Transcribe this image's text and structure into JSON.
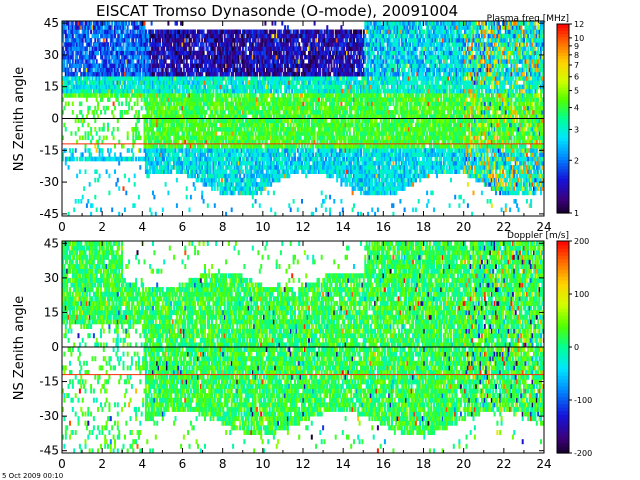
{
  "figure": {
    "title": "EISCAT Tromso Dynasonde (O-mode),  20091004",
    "timestamp": "5 Oct 2009 00:10"
  },
  "chart_data": [
    {
      "type": "heatmap",
      "panel": "top",
      "title": "EISCAT Tromso Dynasonde (O-mode),  20091004",
      "xlabel": "",
      "ylabel": "NS Zenith angle",
      "xlim": [
        0,
        24
      ],
      "ylim": [
        -46,
        46
      ],
      "x_ticks": [
        0,
        2,
        4,
        6,
        8,
        10,
        12,
        14,
        16,
        18,
        20,
        22,
        24
      ],
      "y_ticks": [
        -45,
        -30,
        -15,
        0,
        15,
        30,
        45
      ],
      "reference_lines": [
        {
          "y": 0,
          "color": "#000000"
        },
        {
          "y": -12,
          "color": "#ff2a00"
        }
      ],
      "colorbar": {
        "title": "Plasma freq [MHz]",
        "scale": "log",
        "range": [
          1,
          12
        ],
        "tick_labels": [
          "12",
          "10",
          "9",
          "8",
          "7",
          "6",
          "5",
          "4",
          "3",
          "2",
          "1"
        ],
        "tick_values": [
          12,
          10,
          9,
          8,
          7,
          6,
          5,
          4,
          3,
          2,
          1
        ]
      },
      "typical_values": {
        "main_band": {
          "angle": [
            -15,
            10
          ],
          "value_range": [
            3.5,
            5
          ]
        },
        "upper_region_4_to_15h": {
          "angle": [
            18,
            38
          ],
          "value_range": [
            1,
            2
          ]
        },
        "before_4h": {
          "angle": [
            20,
            45
          ],
          "value_range": [
            1.5,
            2.5
          ]
        },
        "after_20h": {
          "value_range": [
            1.5,
            10
          ]
        }
      }
    },
    {
      "type": "heatmap",
      "panel": "bottom",
      "xlabel": "",
      "ylabel": "NS Zenith angle",
      "xlim": [
        0,
        24
      ],
      "ylim": [
        -46,
        46
      ],
      "x_ticks": [
        0,
        2,
        4,
        6,
        8,
        10,
        12,
        14,
        16,
        18,
        20,
        22,
        24
      ],
      "y_ticks": [
        -45,
        -30,
        -15,
        0,
        15,
        30,
        45
      ],
      "reference_lines": [
        {
          "y": 0,
          "color": "#000000"
        },
        {
          "y": -12,
          "color": "#ff2a00"
        }
      ],
      "colorbar": {
        "title": "Doppler [m/s]",
        "scale": "linear",
        "range": [
          -200,
          200
        ],
        "tick_labels": [
          "200",
          "100",
          "0",
          "-100",
          "-200"
        ],
        "tick_values": [
          200,
          100,
          0,
          -100,
          -200
        ]
      },
      "typical_values": {
        "bulk": {
          "value_range": [
            -20,
            60
          ]
        },
        "sporadic_outliers": {
          "value_range": [
            -200,
            200
          ]
        }
      }
    }
  ],
  "colors": {
    "reference_zero": "#000000",
    "reference_offset": "#ff2a00"
  }
}
